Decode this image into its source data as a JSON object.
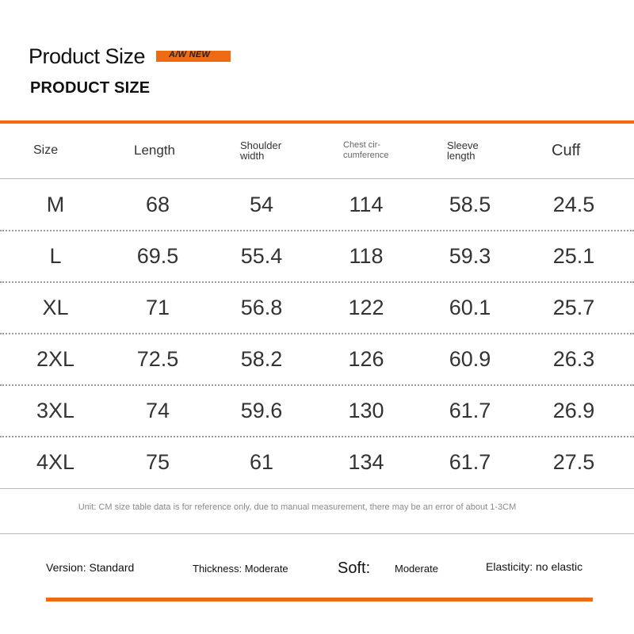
{
  "header": {
    "title": "Product Size",
    "tag": "A/W NEW",
    "subtitle": "PRODUCT SIZE"
  },
  "table": {
    "columns": {
      "size": "Size",
      "length": "Length",
      "shoulder_1": "Shoulder",
      "shoulder_2": "width",
      "chest_1": "Chest cir-",
      "chest_2": "cumference",
      "sleeve_1": "Sleeve",
      "sleeve_2": "length",
      "cuff": "Cuff"
    },
    "rows": [
      {
        "size": "M",
        "length": "68",
        "shoulder": "54",
        "chest": "114",
        "sleeve": "58.5",
        "cuff": "24.5"
      },
      {
        "size": "L",
        "length": "69.5",
        "shoulder": "55.4",
        "chest": "118",
        "sleeve": "59.3",
        "cuff": "25.1"
      },
      {
        "size": "XL",
        "length": "71",
        "shoulder": "56.8",
        "chest": "122",
        "sleeve": "60.1",
        "cuff": "25.7"
      },
      {
        "size": "2XL",
        "length": "72.5",
        "shoulder": "58.2",
        "chest": "126",
        "sleeve": "60.9",
        "cuff": "26.3"
      },
      {
        "size": "3XL",
        "length": "74",
        "shoulder": "59.6",
        "chest": "130",
        "sleeve": "61.7",
        "cuff": "26.9"
      },
      {
        "size": "4XL",
        "length": "75",
        "shoulder": "61",
        "chest": "134",
        "sleeve": "61.7",
        "cuff": "27.5"
      }
    ],
    "note": "Unit: CM size table data is for reference only, due to manual measurement, there may be an error of about 1-3CM"
  },
  "specs": {
    "version": "Version: Standard",
    "thickness": "Thickness: Moderate",
    "soft_label": "Soft:",
    "soft_value": "Moderate",
    "elasticity": "Elasticity: no elastic"
  },
  "colors": {
    "accent": "#ee6b14",
    "divider": "#b8b8b8",
    "text": "#333333"
  }
}
